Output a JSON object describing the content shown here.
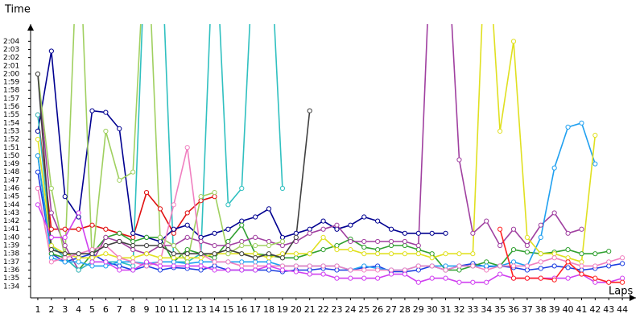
{
  "chart_data": {
    "type": "line",
    "y_label": "Time",
    "x_label": "Laps",
    "x": [
      1,
      2,
      3,
      4,
      5,
      6,
      7,
      8,
      9,
      10,
      11,
      12,
      13,
      14,
      15,
      16,
      17,
      18,
      19,
      20,
      21,
      22,
      23,
      24,
      25,
      26,
      27,
      28,
      29,
      30,
      31,
      32,
      33,
      34,
      35,
      36,
      37,
      38,
      39,
      40,
      41,
      42,
      43,
      44
    ],
    "xlim": [
      0.47,
      45
    ],
    "xticks": [
      1,
      2,
      3,
      4,
      5,
      6,
      7,
      8,
      9,
      10,
      11,
      12,
      13,
      14,
      15,
      16,
      17,
      18,
      19,
      20,
      21,
      22,
      23,
      24,
      25,
      26,
      27,
      28,
      29,
      30,
      31,
      32,
      33,
      34,
      35,
      36,
      37,
      38,
      39,
      40,
      41,
      42,
      43,
      44
    ],
    "ylim": [
      92.6,
      126.1
    ],
    "yticks": [
      {
        "value": 94,
        "label": "1:34"
      },
      {
        "value": 95,
        "label": "1:35"
      },
      {
        "value": 96,
        "label": "1:36"
      },
      {
        "value": 97,
        "label": "1:37"
      },
      {
        "value": 98,
        "label": "1:38"
      },
      {
        "value": 99,
        "label": "1:39"
      },
      {
        "value": 100,
        "label": "1:40"
      },
      {
        "value": 101,
        "label": "1:41"
      },
      {
        "value": 102,
        "label": "1:42"
      },
      {
        "value": 103,
        "label": "1:43"
      },
      {
        "value": 104,
        "label": "1:44"
      },
      {
        "value": 105,
        "label": "1:45"
      },
      {
        "value": 106,
        "label": "1:46"
      },
      {
        "value": 107,
        "label": "1:47"
      },
      {
        "value": 108,
        "label": "1:48"
      },
      {
        "value": 109,
        "label": "1:49"
      },
      {
        "value": 110,
        "label": "1:50"
      },
      {
        "value": 111,
        "label": "1:51"
      },
      {
        "value": 112,
        "label": "1:52"
      },
      {
        "value": 113,
        "label": "1:53"
      },
      {
        "value": 114,
        "label": "1:54"
      },
      {
        "value": 115,
        "label": "1:55"
      },
      {
        "value": 116,
        "label": "1:56"
      },
      {
        "value": 117,
        "label": "1:57"
      },
      {
        "value": 118,
        "label": "1:58"
      },
      {
        "value": 119,
        "label": "1:59"
      },
      {
        "value": 120,
        "label": "2:00"
      },
      {
        "value": 121,
        "label": "2:01"
      },
      {
        "value": 122,
        "label": "2:02"
      },
      {
        "value": 123,
        "label": "2:03"
      },
      {
        "value": 124,
        "label": "2:04"
      }
    ],
    "series": [
      {
        "color": "#e01010",
        "values": [
          115,
          101,
          101,
          101,
          101.5,
          101,
          100.5,
          100,
          105.5,
          103.5,
          100.5,
          103,
          104.5,
          105,
          null,
          null,
          null,
          null,
          null,
          null,
          null,
          null,
          null,
          null,
          null,
          null,
          null,
          null,
          null,
          null,
          null,
          null,
          null,
          null,
          null,
          null,
          null,
          null,
          null,
          null,
          null,
          null,
          null,
          null
        ]
      },
      {
        "color": "#000090",
        "values": [
          113,
          122.8,
          105,
          102.5,
          115.5,
          115.3,
          113.3,
          100.5,
          100,
          99.5,
          101,
          101.5,
          100,
          100.5,
          101,
          102,
          102.5,
          103.5,
          100,
          100.5,
          101,
          102,
          101,
          101.5,
          102.5,
          102,
          101,
          100.5,
          100.5,
          100.5,
          100.5,
          null,
          null,
          null,
          null,
          null,
          null,
          null,
          null,
          null,
          null,
          null,
          null,
          null
        ]
      },
      {
        "color": "#1a3ce0",
        "values": [
          108,
          98,
          97,
          97.5,
          98,
          97,
          96.5,
          96,
          96.5,
          96,
          96.3,
          96.2,
          96,
          96.5,
          96,
          96,
          96,
          96,
          95.8,
          96,
          96,
          96.2,
          96,
          96,
          96.3,
          96.5,
          95.8,
          95.8,
          96,
          96.5,
          96,
          96.5,
          96.8,
          96.4,
          96.5,
          96.3,
          96,
          96.2,
          96.5,
          96.3,
          96,
          96.2,
          96.5,
          96.8
        ]
      },
      {
        "color": "#30a030",
        "values": [
          110,
          98,
          97.5,
          96,
          98,
          100,
          100.5,
          99.5,
          100,
          100,
          97,
          98.5,
          98,
          97.5,
          99.5,
          101.5,
          98,
          97.8,
          97.5,
          97.5,
          98,
          98.5,
          99,
          99.8,
          98.8,
          98.5,
          99,
          99,
          98.5,
          98,
          96,
          96,
          96.5,
          97,
          96.5,
          98.5,
          98.2,
          98,
          98.2,
          98.5,
          98,
          98,
          98.3,
          null
        ]
      },
      {
        "color": "#a040a0",
        "values": [
          120,
          103,
          99,
          96,
          97,
          100,
          99.5,
          98.5,
          98,
          99,
          99,
          100,
          99.5,
          99,
          99,
          99.5,
          100,
          99.5,
          99,
          99.5,
          100.5,
          101,
          101.5,
          99.5,
          99.5,
          99.5,
          99.5,
          99.5,
          99,
          140,
          140,
          109.5,
          100.5,
          102,
          99,
          101,
          99,
          101.5,
          103,
          100.5,
          101,
          null,
          null,
          null
        ]
      },
      {
        "color": "#30c0c0",
        "values": [
          115,
          99,
          97.5,
          96,
          97,
          97,
          97,
          96.5,
          140,
          140,
          97,
          97,
          98,
          140,
          104,
          106,
          140,
          140,
          106,
          null,
          null,
          null,
          null,
          null,
          null,
          null,
          null,
          null,
          null,
          null,
          null,
          null,
          null,
          null,
          null,
          null,
          null,
          null,
          null,
          null,
          null,
          null,
          null,
          null
        ]
      },
      {
        "color": "#20a0f0",
        "values": [
          110,
          97.5,
          97,
          97,
          96.5,
          96.5,
          97,
          97,
          96.8,
          97,
          97,
          96.8,
          97,
          97,
          97,
          97,
          97,
          97,
          96.5,
          96.5,
          96.5,
          96.5,
          96.5,
          96,
          96.5,
          96.2,
          96,
          96,
          96.5,
          96.5,
          96.5,
          96.5,
          96.5,
          96.5,
          96.5,
          97,
          96.5,
          100,
          108.5,
          113.5,
          114,
          109,
          null,
          null
        ]
      },
      {
        "color": "#e0e020",
        "values": [
          112,
          99,
          98,
          97.5,
          97.5,
          98,
          97.5,
          97.5,
          98,
          97.5,
          97.5,
          97.5,
          97.5,
          98,
          98,
          98,
          98,
          97.5,
          98,
          98,
          98,
          100,
          98.5,
          98.5,
          98,
          98,
          98,
          98,
          98,
          97.5,
          98,
          98,
          98,
          140,
          113,
          124,
          100,
          98,
          98,
          97.5,
          97,
          112.5,
          null,
          null
        ]
      },
      {
        "color": "#a0d060",
        "values": [
          120,
          106,
          97.5,
          140,
          97,
          113,
          107,
          108,
          140,
          100,
          99,
          97,
          105,
          105.5,
          98,
          99,
          99,
          99,
          99.5,
          null,
          null,
          null,
          null,
          null,
          null,
          null,
          null,
          null,
          null,
          null,
          null,
          null,
          null,
          null,
          null,
          null,
          null,
          null,
          null,
          null,
          null,
          null,
          null,
          null
        ]
      },
      {
        "color": "#f080c0",
        "values": [
          106,
          97,
          97.5,
          98,
          98.5,
          99,
          97.5,
          97,
          96.5,
          97,
          104,
          111,
          98,
          97,
          97,
          96.5,
          96.5,
          96.5,
          96.5,
          96.5,
          96.5,
          96.5,
          96.5,
          96,
          96,
          96,
          96,
          96,
          96.5,
          96.5,
          96,
          96.5,
          96.5,
          96,
          96.5,
          96.5,
          96.5,
          97,
          97.5,
          97,
          96.5,
          96.5,
          97,
          97.5
        ]
      },
      {
        "color": "#d040f0",
        "values": [
          104,
          100,
          100,
          103,
          97,
          97,
          96,
          96,
          97,
          96.5,
          96.5,
          96.5,
          96.5,
          96,
          96,
          96,
          96,
          96.5,
          96,
          95.8,
          95.5,
          95.5,
          95,
          95,
          95,
          95,
          95.5,
          95.5,
          94.5,
          95,
          95,
          94.5,
          94.5,
          94.5,
          95.5,
          95,
          95,
          95,
          95,
          95,
          95.5,
          94.5,
          94.5,
          95
        ]
      },
      {
        "color": "#404040",
        "values": [
          120,
          98.5,
          98,
          98,
          98,
          99,
          99.5,
          99,
          99,
          99,
          98,
          98,
          98,
          98,
          98.5,
          98,
          97.5,
          98,
          97.5,
          100,
          115.5,
          null,
          null,
          null,
          null,
          null,
          null,
          null,
          null,
          null,
          null,
          null,
          null,
          null,
          null,
          null,
          null,
          null,
          null,
          null,
          null,
          null,
          null,
          null
        ]
      },
      {
        "color": "#ff2020",
        "values": [
          null,
          null,
          null,
          null,
          null,
          null,
          null,
          null,
          null,
          null,
          null,
          null,
          null,
          null,
          null,
          null,
          null,
          null,
          null,
          null,
          null,
          null,
          null,
          null,
          null,
          null,
          null,
          null,
          null,
          null,
          null,
          null,
          null,
          null,
          101,
          95,
          95,
          95,
          94.8,
          97,
          95.5,
          95,
          94.5,
          94.5
        ]
      }
    ]
  }
}
